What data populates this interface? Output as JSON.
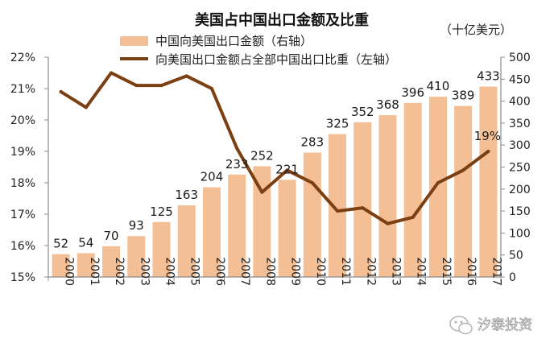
{
  "chart_data": {
    "type": "bar",
    "title": "美国占中国出口金额及比重",
    "unit_label": "（十亿美元）",
    "categories": [
      "2000",
      "2001",
      "2002",
      "2003",
      "2004",
      "2005",
      "2006",
      "2007",
      "2008",
      "2009",
      "2010",
      "2011",
      "2012",
      "2013",
      "2014",
      "2015",
      "2016",
      "2017"
    ],
    "series": [
      {
        "name": "中国向美国出口金额（右轴）",
        "type": "bar",
        "axis": "right",
        "color": "#f4bf95",
        "values": [
          52,
          54,
          70,
          93,
          125,
          163,
          204,
          233,
          252,
          221,
          283,
          325,
          352,
          368,
          396,
          410,
          389,
          433
        ],
        "data_labels": [
          "52",
          "54",
          "70",
          "93",
          "125",
          "163",
          "204",
          "233",
          "252",
          "221",
          "283",
          "325",
          "352",
          "368",
          "396",
          "410",
          "389",
          "433"
        ]
      },
      {
        "name": "向美国出口金额占全部中国出口比重（左轴）",
        "type": "line",
        "axis": "left",
        "color": "#7b3f12",
        "values": [
          20.9,
          20.4,
          21.5,
          21.1,
          21.1,
          21.4,
          21.0,
          19.1,
          17.7,
          18.4,
          18.0,
          17.1,
          17.2,
          16.7,
          16.9,
          18.0,
          18.4,
          19.0
        ],
        "end_label": "19%"
      }
    ],
    "left_axis": {
      "ylim": [
        15,
        22
      ],
      "ticks": [
        15,
        16,
        17,
        18,
        19,
        20,
        21,
        22
      ],
      "tick_labels": [
        "15%",
        "16%",
        "17%",
        "18%",
        "19%",
        "20%",
        "21%",
        "22%"
      ]
    },
    "right_axis": {
      "ylim": [
        0,
        500
      ],
      "ticks": [
        0,
        50,
        100,
        150,
        200,
        250,
        300,
        350,
        400,
        450,
        500
      ],
      "tick_labels": [
        "0",
        "50",
        "100",
        "150",
        "200",
        "250",
        "300",
        "350",
        "400",
        "450",
        "500"
      ]
    },
    "grid": false,
    "legend_position": "top-left",
    "watermark": "汐泰投资"
  }
}
